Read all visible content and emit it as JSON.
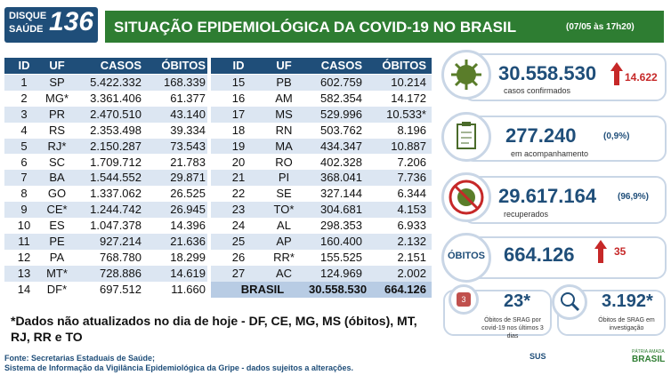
{
  "logo": {
    "line1": "DISQUE",
    "line2": "SAÚDE",
    "number": "136"
  },
  "header": {
    "title": "SITUAÇÃO EPIDEMIOLÓGICA DA COVID-19 NO BRASIL",
    "timestamp": "(07/05 às 17h20)"
  },
  "tables": [
    {
      "columns": [
        "ID",
        "UF",
        "CASOS",
        "ÓBITOS"
      ],
      "rows": [
        [
          "1",
          "SP",
          "5.422.332",
          "168.339"
        ],
        [
          "2",
          "MG*",
          "3.361.406",
          "61.377"
        ],
        [
          "3",
          "PR",
          "2.470.510",
          "43.140"
        ],
        [
          "4",
          "RS",
          "2.353.498",
          "39.334"
        ],
        [
          "5",
          "RJ*",
          "2.150.287",
          "73.543"
        ],
        [
          "6",
          "SC",
          "1.709.712",
          "21.783"
        ],
        [
          "7",
          "BA",
          "1.544.552",
          "29.871"
        ],
        [
          "8",
          "GO",
          "1.337.062",
          "26.525"
        ],
        [
          "9",
          "CE*",
          "1.244.742",
          "26.945"
        ],
        [
          "10",
          "ES",
          "1.047.378",
          "14.396"
        ],
        [
          "11",
          "PE",
          "927.214",
          "21.636"
        ],
        [
          "12",
          "PA",
          "768.780",
          "18.299"
        ],
        [
          "13",
          "MT*",
          "728.886",
          "14.619"
        ],
        [
          "14",
          "DF*",
          "697.512",
          "11.660"
        ]
      ]
    },
    {
      "columns": [
        "ID",
        "UF",
        "CASOS",
        "ÓBITOS"
      ],
      "rows": [
        [
          "15",
          "PB",
          "602.759",
          "10.214"
        ],
        [
          "16",
          "AM",
          "582.354",
          "14.172"
        ],
        [
          "17",
          "MS",
          "529.996",
          "10.533*"
        ],
        [
          "18",
          "RN",
          "503.762",
          "8.196"
        ],
        [
          "19",
          "MA",
          "434.347",
          "10.887"
        ],
        [
          "20",
          "RO",
          "402.328",
          "7.206"
        ],
        [
          "21",
          "PI",
          "368.041",
          "7.736"
        ],
        [
          "22",
          "SE",
          "327.144",
          "6.344"
        ],
        [
          "23",
          "TO*",
          "304.681",
          "4.153"
        ],
        [
          "24",
          "AL",
          "298.353",
          "6.933"
        ],
        [
          "25",
          "AP",
          "160.400",
          "2.132"
        ],
        [
          "26",
          "RR*",
          "155.525",
          "2.151"
        ],
        [
          "27",
          "AC",
          "124.969",
          "2.002"
        ]
      ],
      "total": [
        "BRASIL",
        "30.558.530",
        "664.126"
      ]
    }
  ],
  "note": "*Dados não atualizados no dia de hoje - DF, CE, MG, MS (óbitos), MT, RJ, RR e TO",
  "source": [
    "Fonte: Secretarias Estaduais de Saúde;",
    "Sistema de Informação da Vigilância Epidemiológica da Gripe - dados sujeitos a alterações."
  ],
  "cards": {
    "confirmed": {
      "value": "30.558.530",
      "increase": "14.622",
      "label": "casos confirmados"
    },
    "monitoring": {
      "value": "277.240",
      "percent": "(0,9%)",
      "label": "em acompanhamento"
    },
    "recovered": {
      "value": "29.617.164",
      "percent": "(96,9%)",
      "label": "recuperados"
    },
    "deaths": {
      "title": "ÓBITOS",
      "value": "664.126",
      "increase": "35"
    },
    "srag_recent": {
      "value": "23*",
      "label": "Óbitos de SRAG por covid-19 nos últimos 3 dias",
      "icon": "3"
    },
    "srag_investigation": {
      "value": "3.192*",
      "label": "Óbitos de SRAG em investigação"
    }
  },
  "footer": {
    "sus": "SUS",
    "brand_top": "PÁTRIA AMADA",
    "brand": "BRASIL"
  }
}
